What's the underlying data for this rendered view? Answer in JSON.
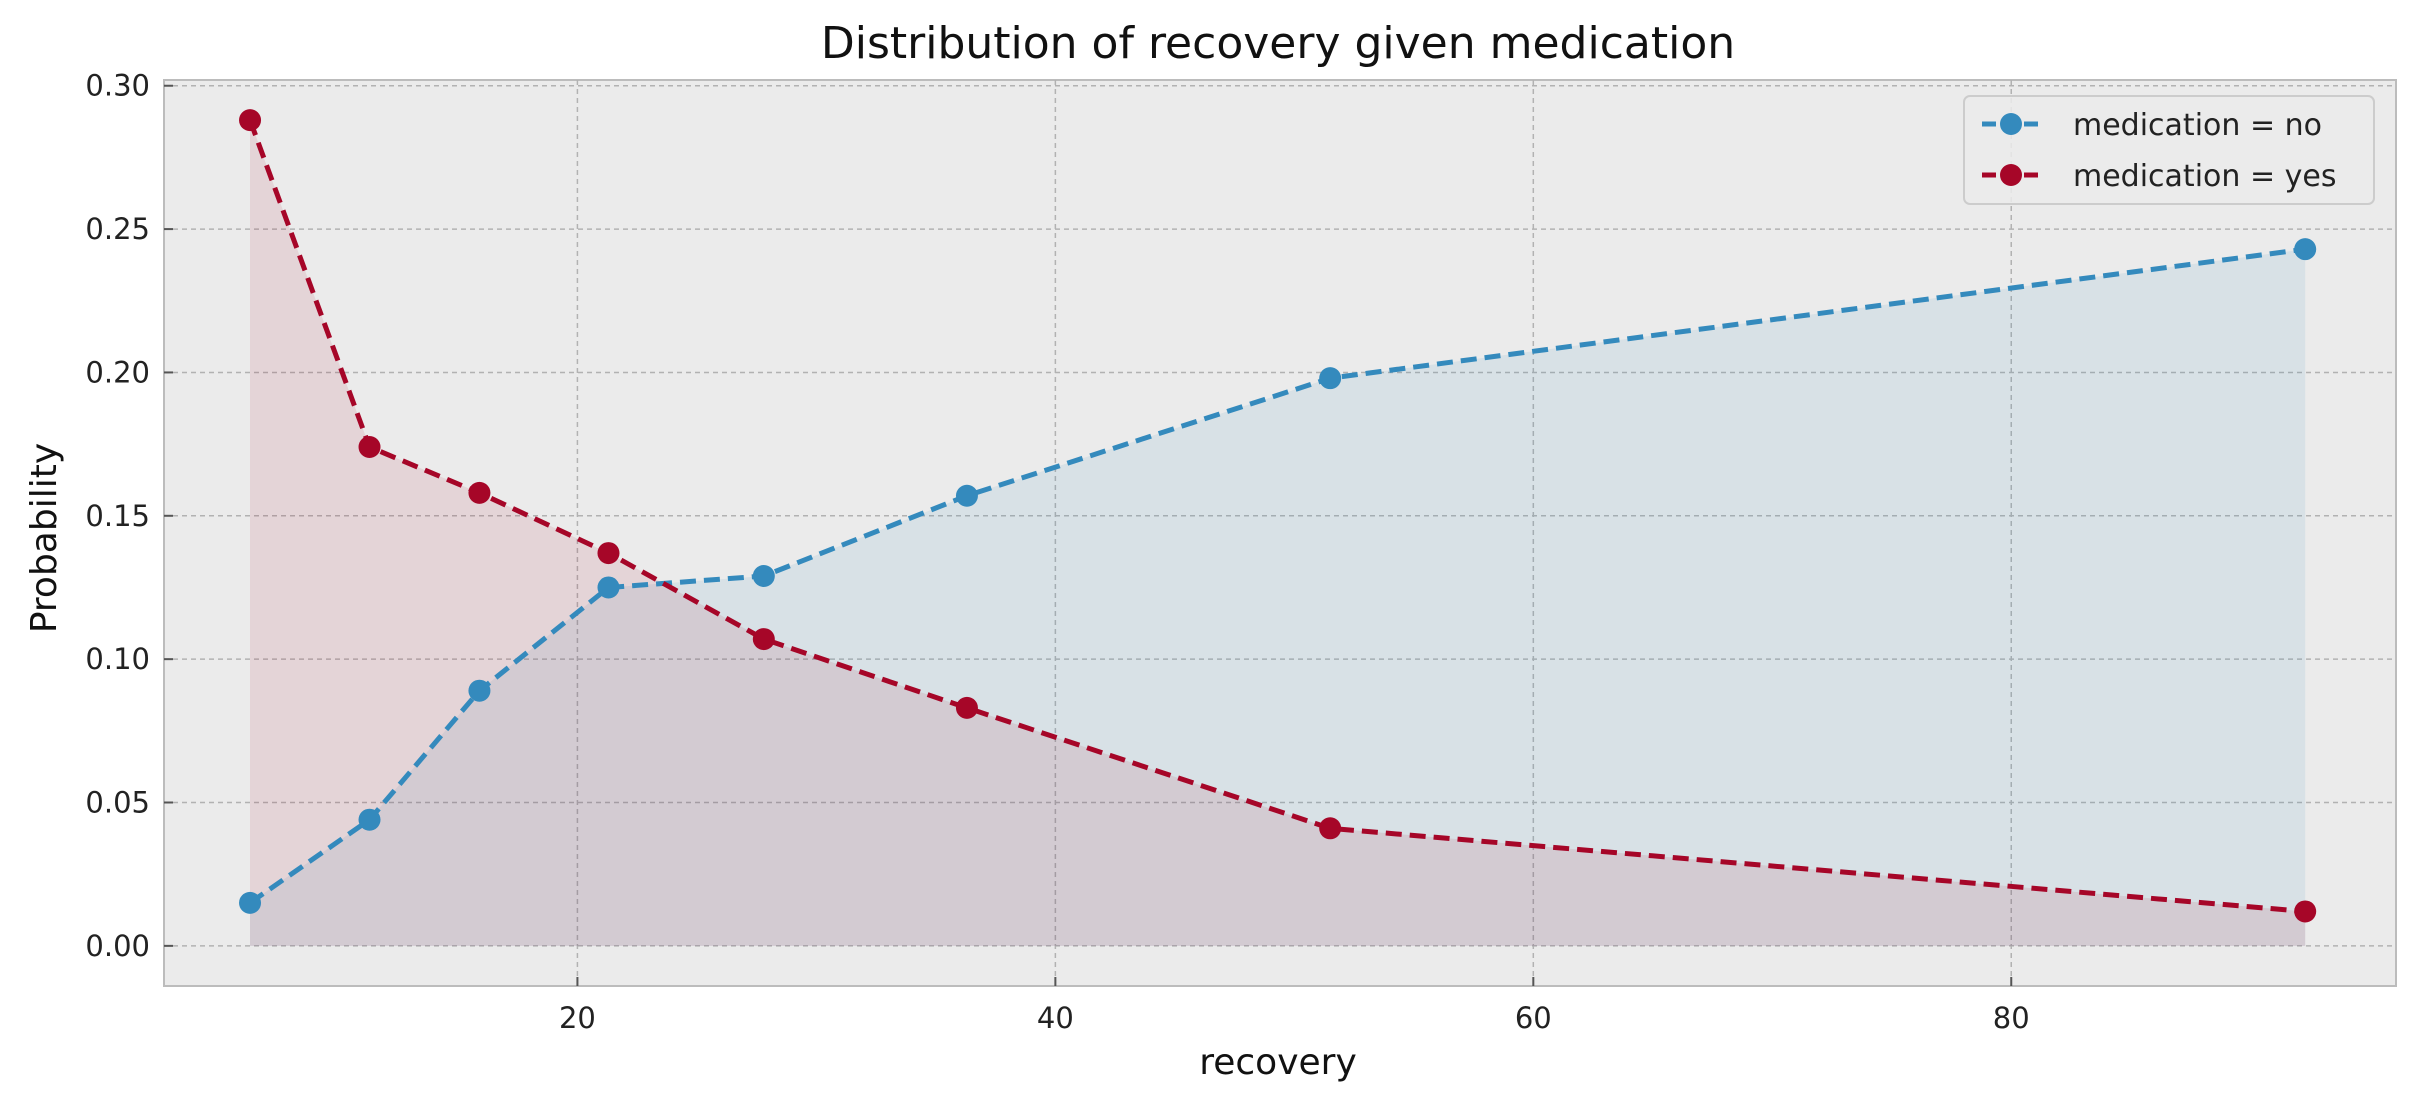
{
  "chart_data": {
    "type": "line",
    "title": "Distribution of recovery given medication",
    "xlabel": "recovery",
    "ylabel": "Probability",
    "xlim": [
      2.7,
      96.1
    ],
    "ylim": [
      -0.014,
      0.302
    ],
    "x_ticks": [
      20,
      40,
      60,
      80
    ],
    "y_ticks": [
      0.0,
      0.05,
      0.1,
      0.15,
      0.2,
      0.25,
      0.3
    ],
    "y_tick_labels": [
      "0.00",
      "0.05",
      "0.10",
      "0.15",
      "0.20",
      "0.25",
      "0.30"
    ],
    "grid": true,
    "legend_position": "top-right",
    "series": [
      {
        "name": "medication = no",
        "color": "#348ABD",
        "x": [
          6.3,
          11.3,
          15.9,
          21.3,
          27.8,
          36.3,
          51.5,
          92.3
        ],
        "y": [
          0.015,
          0.044,
          0.089,
          0.125,
          0.129,
          0.157,
          0.198,
          0.243
        ]
      },
      {
        "name": "medication = yes",
        "color": "#A60628",
        "x": [
          6.3,
          11.3,
          15.9,
          21.3,
          27.8,
          36.3,
          51.5,
          92.3
        ],
        "y": [
          0.288,
          0.174,
          0.158,
          0.137,
          0.107,
          0.083,
          0.041,
          0.012
        ]
      }
    ]
  }
}
